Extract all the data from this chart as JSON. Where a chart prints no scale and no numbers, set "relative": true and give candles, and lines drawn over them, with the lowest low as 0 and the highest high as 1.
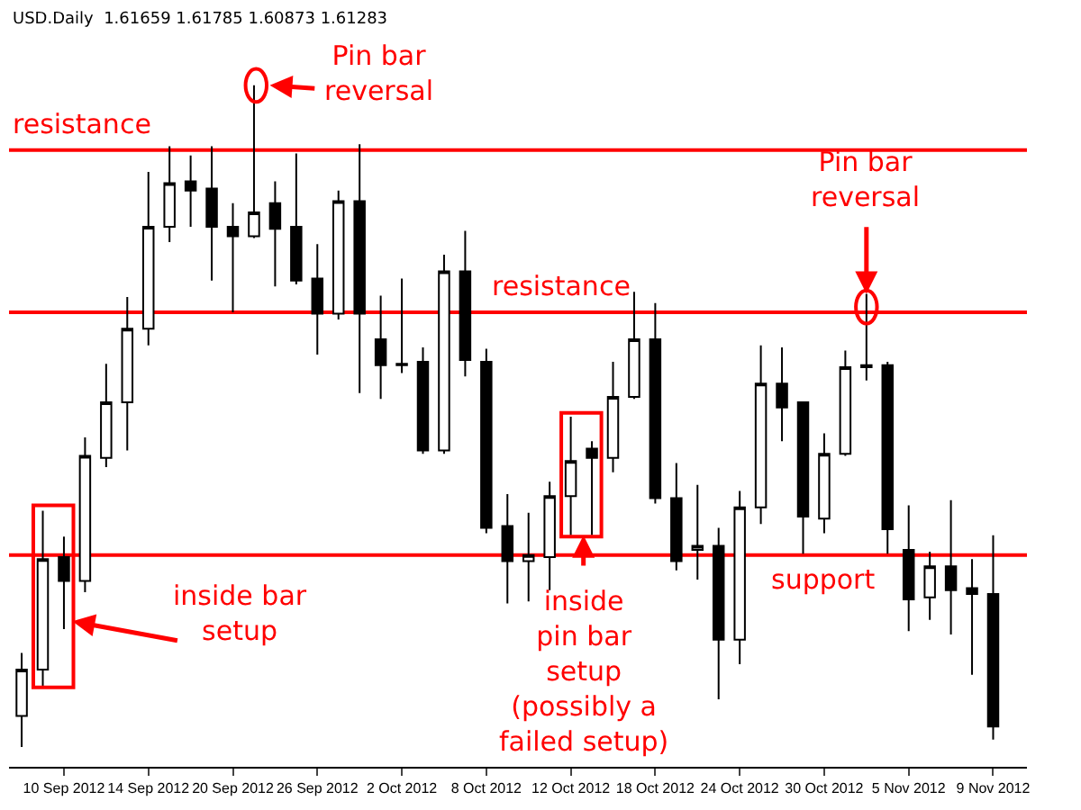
{
  "chart_data": {
    "type": "candlestick",
    "relative": true,
    "categories": [
      null,
      null,
      "10 Sep 2012",
      null,
      null,
      null,
      "14 Sep 2012",
      null,
      null,
      null,
      "20 Sep 2012",
      null,
      null,
      null,
      "26 Sep 2012",
      null,
      null,
      null,
      "2 Oct 2012",
      null,
      null,
      null,
      "8 Oct 2012",
      null,
      null,
      null,
      "12 Oct 2012",
      null,
      null,
      null,
      "18 Oct 2012",
      null,
      null,
      null,
      "24 Oct 2012",
      null,
      null,
      null,
      "30 Oct 2012",
      null,
      null,
      null,
      "5 Nov 2012",
      null,
      null,
      null,
      "9 Nov 2012"
    ],
    "ohlc": [
      [
        0.047,
        0.142,
        0,
        0.117
      ],
      [
        0.117,
        0.357,
        0.092,
        0.284
      ],
      [
        0.287,
        0.318,
        0.178,
        0.251
      ],
      [
        0.251,
        0.468,
        0.234,
        0.44
      ],
      [
        0.437,
        0.579,
        0.423,
        0.521
      ],
      [
        0.521,
        0.68,
        0.448,
        0.632
      ],
      [
        0.632,
        0.869,
        0.607,
        0.786
      ],
      [
        0.786,
        0.908,
        0.763,
        0.852
      ],
      [
        0.855,
        0.894,
        0.786,
        0.841
      ],
      [
        0.844,
        0.908,
        0.705,
        0.786
      ],
      [
        0.786,
        0.822,
        0.657,
        0.772
      ],
      [
        0.772,
        1,
        0.769,
        0.808
      ],
      [
        0.822,
        0.855,
        0.696,
        0.783
      ],
      [
        0.786,
        0.897,
        0.699,
        0.705
      ],
      [
        0.708,
        0.76,
        0.593,
        0.655
      ],
      [
        0.655,
        0.841,
        0.646,
        0.825
      ],
      [
        0.825,
        0.911,
        0.535,
        0.655
      ],
      [
        0.616,
        0.682,
        0.526,
        0.577
      ],
      [
        0.579,
        0.708,
        0.565,
        0.577
      ],
      [
        0.582,
        0.604,
        0.443,
        0.448
      ],
      [
        0.448,
        0.744,
        0.443,
        0.719
      ],
      [
        0.719,
        0.78,
        0.56,
        0.585
      ],
      [
        0.582,
        0.602,
        0.323,
        0.331
      ],
      [
        0.334,
        0.382,
        0.217,
        0.281
      ],
      [
        0.281,
        0.354,
        0.22,
        0.29
      ],
      [
        0.287,
        0.401,
        0.237,
        0.379
      ],
      [
        0.379,
        0.499,
        0.32,
        0.432
      ],
      [
        0.451,
        0.462,
        0.32,
        0.437
      ],
      [
        0.437,
        0.582,
        0.415,
        0.529
      ],
      [
        0.529,
        0.688,
        0.526,
        0.616
      ],
      [
        0.616,
        0.671,
        0.368,
        0.376
      ],
      [
        0.376,
        0.429,
        0.267,
        0.281
      ],
      [
        0.298,
        0.396,
        0.253,
        0.304
      ],
      [
        0.304,
        0.331,
        0.072,
        0.162
      ],
      [
        0.162,
        0.387,
        0.125,
        0.362
      ],
      [
        0.362,
        0.607,
        0.337,
        0.549
      ],
      [
        0.549,
        0.604,
        0.462,
        0.513
      ],
      [
        0.521,
        0.521,
        0.292,
        0.348
      ],
      [
        0.345,
        0.474,
        0.323,
        0.443
      ],
      [
        0.443,
        0.599,
        0.44,
        0.574
      ],
      [
        0.574,
        0.685,
        0.554,
        0.577
      ],
      [
        0.577,
        0.582,
        0.292,
        0.329
      ],
      [
        0.298,
        0.365,
        0.175,
        0.223
      ],
      [
        0.226,
        0.295,
        0.192,
        0.273
      ],
      [
        0.273,
        0.373,
        0.17,
        0.237
      ],
      [
        0.24,
        0.284,
        0.109,
        0.231
      ],
      [
        0.231,
        0.32,
        0.011,
        0.031
      ]
    ],
    "ref_lines": [
      {
        "axis": "y",
        "value": 0.902,
        "label": "resistance",
        "color": "#ff0000"
      },
      {
        "axis": "y",
        "value": 0.657,
        "label": "resistance",
        "color": "#ff0000"
      },
      {
        "axis": "y",
        "value": 0.29,
        "label": "support",
        "color": "#ff0000"
      }
    ],
    "annotations": [
      "USD.Daily  1.61659 1.61785 1.60873 1.61283",
      "Pin bar\nreversal",
      {
        "text": "Pin bar\nreversal",
        "y": 0.685
      },
      "inside bar\nsetup",
      {
        "text": "inside\npin bar\nsetup\n(possibly a\nfailed setup)",
        "y": 0.32
      }
    ],
    "grid": false
  }
}
